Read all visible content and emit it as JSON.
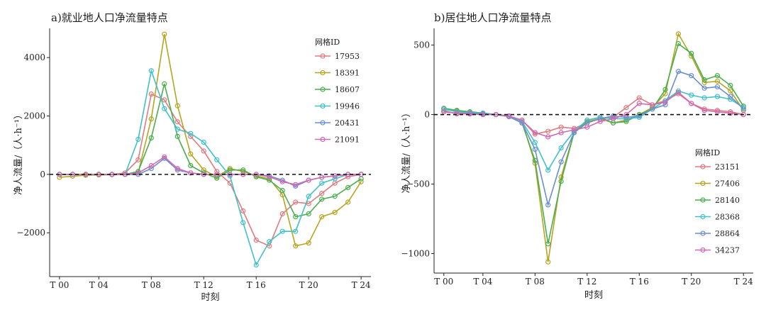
{
  "chart_data": [
    {
      "type": "line",
      "title": "a)就业地人口净流量特点",
      "xlabel": "时刻",
      "ylabel": "净人流量/（人·h⁻¹）",
      "x": [
        1,
        2,
        3,
        4,
        5,
        6,
        7,
        8,
        9,
        10,
        11,
        12,
        13,
        14,
        15,
        16,
        17,
        18,
        19,
        20,
        21,
        22,
        23,
        24
      ],
      "x_ticks": [
        1,
        4,
        8,
        12,
        16,
        20,
        24
      ],
      "x_tick_labels": [
        "T 00",
        "T 04",
        "T 08",
        "T 12",
        "T 16",
        "T 20",
        "T 24"
      ],
      "xlim": [
        0.25,
        24.75
      ],
      "ylim": [
        -3500,
        5000
      ],
      "y_ticks": [
        -2000,
        0,
        2000,
        4000
      ],
      "y_tick_labels": [
        "−2000",
        "0",
        "2000",
        "4000"
      ],
      "grid": false,
      "zero_line": "dashed",
      "legend": {
        "title": "网格ID",
        "placement": "top-right"
      },
      "series": [
        {
          "name": "17953",
          "color": "#e07b80",
          "values": [
            0,
            0,
            0,
            0,
            0,
            50,
            500,
            2750,
            2550,
            1800,
            1300,
            800,
            100,
            -300,
            -1250,
            -2250,
            -2450,
            -1350,
            -950,
            -1000,
            -650,
            -300,
            -80,
            0
          ]
        },
        {
          "name": "18391",
          "color": "#b5a520",
          "values": [
            -100,
            -60,
            -30,
            -20,
            -10,
            0,
            50,
            1900,
            4800,
            2350,
            700,
            150,
            -80,
            200,
            100,
            -50,
            -150,
            -700,
            -2450,
            -2350,
            -1450,
            -1300,
            -950,
            -250
          ]
        },
        {
          "name": "18607",
          "color": "#4aae4f",
          "values": [
            0,
            0,
            0,
            0,
            0,
            0,
            100,
            1250,
            3100,
            1300,
            300,
            50,
            -130,
            150,
            150,
            -80,
            -200,
            -550,
            -1450,
            -1350,
            -850,
            -750,
            -450,
            -150
          ]
        },
        {
          "name": "19946",
          "color": "#40c0c8",
          "values": [
            0,
            0,
            0,
            0,
            0,
            0,
            1200,
            3550,
            2250,
            1550,
            1400,
            1100,
            500,
            -50,
            -1650,
            -3100,
            -2300,
            -1950,
            -1950,
            -750,
            -300,
            -150,
            0,
            0
          ]
        },
        {
          "name": "20431",
          "color": "#6a8ecf",
          "values": [
            0,
            0,
            0,
            0,
            0,
            0,
            0,
            200,
            550,
            150,
            50,
            0,
            0,
            0,
            0,
            0,
            -50,
            -200,
            -400,
            -200,
            -100,
            -50,
            0,
            0
          ]
        },
        {
          "name": "21091",
          "color": "#d06ab2",
          "values": [
            0,
            0,
            0,
            0,
            0,
            0,
            50,
            300,
            600,
            200,
            50,
            0,
            0,
            0,
            0,
            0,
            -80,
            -250,
            -350,
            -200,
            -100,
            -50,
            0,
            0
          ]
        }
      ]
    },
    {
      "type": "line",
      "title": "b)居住地人口净流量特点",
      "xlabel": "时刻",
      "ylabel": "净人流量/（人·h⁻¹）",
      "x": [
        1,
        2,
        3,
        4,
        5,
        6,
        7,
        8,
        9,
        10,
        11,
        12,
        13,
        14,
        15,
        16,
        17,
        18,
        19,
        20,
        21,
        22,
        23,
        24
      ],
      "x_ticks": [
        1,
        4,
        8,
        12,
        16,
        20,
        24
      ],
      "x_tick_labels": [
        "T 00",
        "T 04",
        "T 08",
        "T 12",
        "T 16",
        "T 20",
        "T 24"
      ],
      "xlim": [
        0.25,
        24.75
      ],
      "ylim": [
        -1140,
        620
      ],
      "y_ticks": [
        -1000,
        -500,
        0,
        500
      ],
      "y_tick_labels": [
        "−1000",
        "−500",
        "0",
        "500"
      ],
      "grid": false,
      "zero_line": "dashed",
      "legend": {
        "title": "网格ID",
        "placement": "bottom-right"
      },
      "series": [
        {
          "name": "23151",
          "color": "#e07b80",
          "values": [
            30,
            5,
            5,
            0,
            0,
            -10,
            -40,
            -140,
            -120,
            -90,
            -100,
            -60,
            -30,
            -20,
            50,
            120,
            70,
            100,
            150,
            80,
            40,
            30,
            20,
            0
          ]
        },
        {
          "name": "27406",
          "color": "#b5a520",
          "values": [
            40,
            25,
            20,
            10,
            0,
            -10,
            -50,
            -350,
            -1060,
            -450,
            -130,
            -50,
            -30,
            -60,
            -40,
            0,
            50,
            150,
            580,
            420,
            230,
            240,
            170,
            30
          ]
        },
        {
          "name": "28140",
          "color": "#4aae4f",
          "values": [
            45,
            30,
            20,
            10,
            0,
            -15,
            -60,
            -330,
            -930,
            -480,
            -130,
            -40,
            -20,
            -60,
            -50,
            0,
            40,
            180,
            510,
            440,
            250,
            280,
            210,
            60
          ]
        },
        {
          "name": "28368",
          "color": "#40c0c8",
          "values": [
            40,
            20,
            15,
            10,
            0,
            -10,
            -50,
            -200,
            -400,
            -240,
            -120,
            -40,
            -20,
            -30,
            -30,
            -20,
            40,
            100,
            170,
            140,
            120,
            130,
            110,
            50
          ]
        },
        {
          "name": "28864",
          "color": "#6a8ecf",
          "values": [
            20,
            10,
            10,
            5,
            0,
            -15,
            -60,
            -250,
            -650,
            -340,
            -130,
            -60,
            -30,
            -10,
            -20,
            -10,
            40,
            70,
            310,
            280,
            190,
            200,
            130,
            40
          ]
        },
        {
          "name": "34237",
          "color": "#d06ab2",
          "values": [
            20,
            10,
            5,
            0,
            0,
            -10,
            -40,
            -130,
            -160,
            -130,
            -110,
            -90,
            -50,
            -30,
            0,
            80,
            70,
            90,
            160,
            80,
            30,
            20,
            10,
            0
          ]
        }
      ]
    }
  ]
}
